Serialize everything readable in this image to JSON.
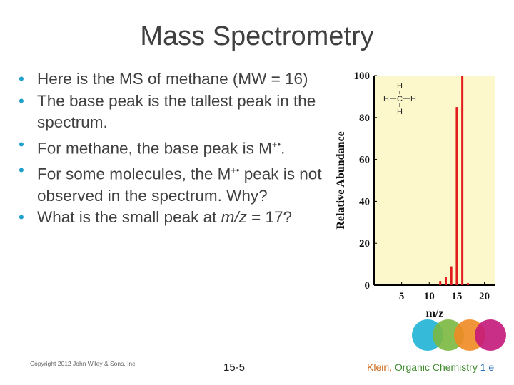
{
  "slide": {
    "title": "Mass Spectrometry",
    "bullets": [
      {
        "pre": "Here is the MS of methane (MW = 16)",
        "post": ""
      },
      {
        "pre": "The base peak is the tallest peak in the spectrum.",
        "post": ""
      },
      {
        "pre": "For methane, the base peak is M",
        "sup": "+•",
        "post": "."
      },
      {
        "pre": "For some molecules, the M",
        "sup": "+•",
        "post": " peak is not observed in the spectrum. Why?"
      },
      {
        "pre": "What is the small peak at ",
        "em": "m/z",
        "post": " = 17?"
      }
    ],
    "footer": {
      "copyright": "Copyright 2012 John Wiley & Sons, Inc.",
      "page": "15-5",
      "book_author": "Klein",
      "book_title": "Organic Chemistry",
      "book_edition": "1 e"
    },
    "colors": {
      "bullet": "#1fa0c8",
      "title": "#404040",
      "plot_bg": "#fcf8cc",
      "bar": "#e21c1c",
      "logo": [
        "#1fb3d6",
        "#7ab840",
        "#f08a24",
        "#c4187a"
      ]
    }
  },
  "chart_data": {
    "type": "bar",
    "xlabel": "m/z",
    "ylabel": "Relative Abundance",
    "xlim": [
      0,
      22
    ],
    "ylim": [
      0,
      100
    ],
    "x_ticks": [
      5,
      10,
      15,
      20
    ],
    "y_ticks": [
      0,
      20,
      40,
      60,
      80,
      100
    ],
    "x": [
      12,
      13,
      14,
      15,
      16,
      17
    ],
    "values": [
      2,
      4,
      9,
      85,
      100,
      1
    ],
    "structure_label": {
      "top": "H",
      "left": "H",
      "center": "C",
      "right": "H",
      "bottom": "H"
    },
    "grid": false
  }
}
